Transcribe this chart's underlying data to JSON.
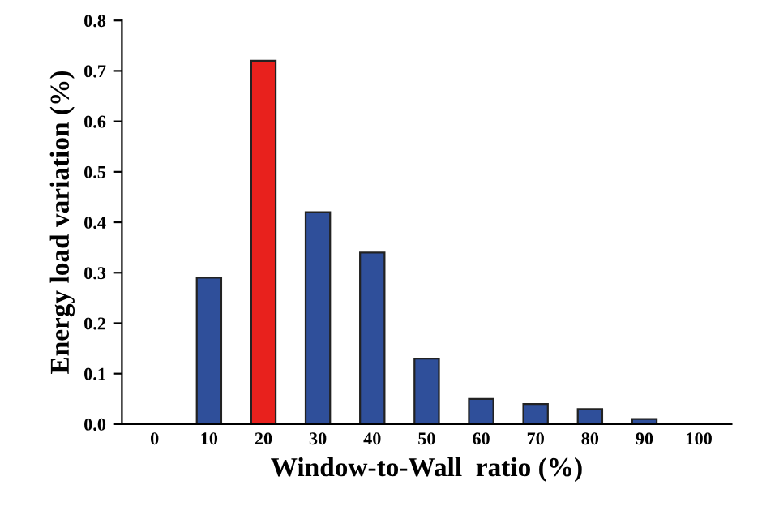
{
  "chart_data": {
    "type": "bar",
    "xlabel": "Window-to-Wall  ratio (%)",
    "ylabel": "Energy load variation (%)",
    "categories": [
      "0",
      "10",
      "20",
      "30",
      "40",
      "50",
      "60",
      "70",
      "80",
      "90",
      "100"
    ],
    "values": [
      null,
      0.29,
      0.72,
      0.42,
      0.34,
      0.13,
      0.05,
      0.04,
      0.03,
      0.01,
      null
    ],
    "colors": [
      "#2f4f9a",
      "#2f4f9a",
      "#e8211d",
      "#2f4f9a",
      "#2f4f9a",
      "#2f4f9a",
      "#2f4f9a",
      "#2f4f9a",
      "#2f4f9a",
      "#2f4f9a",
      "#2f4f9a"
    ],
    "ylim": [
      0,
      0.8
    ],
    "yticks": [
      {
        "value": 0,
        "label": "0.0"
      },
      0.1,
      0.2,
      0.3,
      0.4,
      0.5,
      0.6,
      0.7,
      0.8
    ],
    "grid": false,
    "legend": false
  }
}
